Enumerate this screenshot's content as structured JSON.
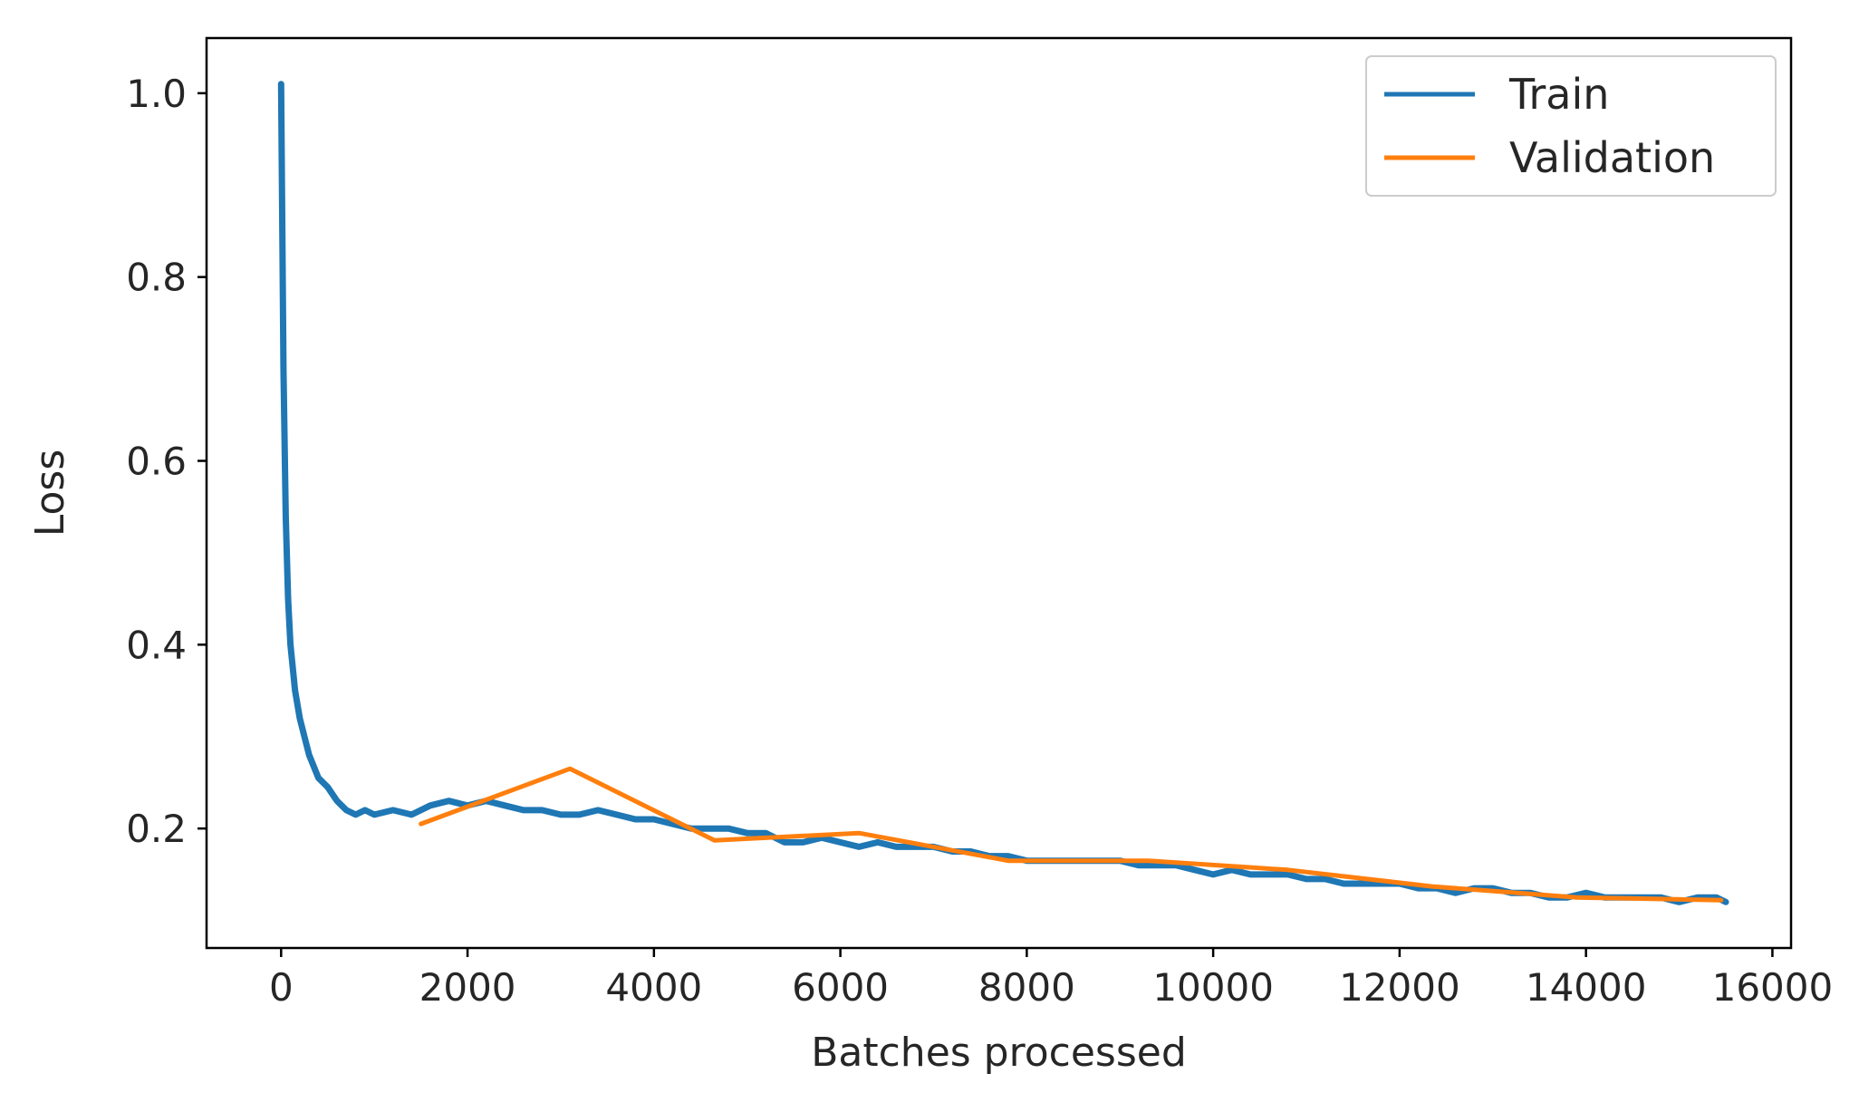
{
  "chart_data": {
    "type": "line",
    "xlabel": "Batches processed",
    "ylabel": "Loss",
    "xlim": [
      -800,
      16200
    ],
    "ylim": [
      0.07,
      1.06
    ],
    "xticks": [
      0,
      2000,
      4000,
      6000,
      8000,
      10000,
      12000,
      14000,
      16000
    ],
    "xtick_labels": [
      "0",
      "2000",
      "4000",
      "6000",
      "8000",
      "10000",
      "12000",
      "14000",
      "16000"
    ],
    "yticks": [
      0.2,
      0.4,
      0.6,
      0.8,
      1.0
    ],
    "ytick_labels": [
      "0.2",
      "0.4",
      "0.6",
      "0.8",
      "1.0"
    ],
    "grid": false,
    "legend_position": "top-right",
    "series": [
      {
        "name": "Train",
        "color": "#1f77b4",
        "x": [
          0,
          25,
          50,
          75,
          100,
          150,
          200,
          250,
          300,
          400,
          500,
          600,
          700,
          800,
          900,
          1000,
          1200,
          1400,
          1600,
          1800,
          2000,
          2200,
          2400,
          2600,
          2800,
          3000,
          3200,
          3400,
          3600,
          3800,
          4000,
          4200,
          4400,
          4600,
          4800,
          5000,
          5200,
          5400,
          5600,
          5800,
          6000,
          6200,
          6400,
          6600,
          6800,
          7000,
          7200,
          7400,
          7600,
          7800,
          8000,
          8200,
          8400,
          8600,
          8800,
          9000,
          9200,
          9400,
          9600,
          9800,
          10000,
          10200,
          10400,
          10600,
          10800,
          11000,
          11200,
          11400,
          11600,
          11800,
          12000,
          12200,
          12400,
          12600,
          12800,
          13000,
          13200,
          13400,
          13600,
          13800,
          14000,
          14200,
          14400,
          14600,
          14800,
          15000,
          15200,
          15400,
          15500
        ],
        "y": [
          1.01,
          0.7,
          0.54,
          0.45,
          0.4,
          0.35,
          0.32,
          0.3,
          0.28,
          0.255,
          0.245,
          0.23,
          0.22,
          0.215,
          0.22,
          0.215,
          0.22,
          0.215,
          0.225,
          0.23,
          0.225,
          0.23,
          0.225,
          0.22,
          0.22,
          0.215,
          0.215,
          0.22,
          0.215,
          0.21,
          0.21,
          0.205,
          0.2,
          0.2,
          0.2,
          0.195,
          0.195,
          0.185,
          0.185,
          0.19,
          0.185,
          0.18,
          0.185,
          0.18,
          0.18,
          0.18,
          0.175,
          0.175,
          0.17,
          0.17,
          0.165,
          0.165,
          0.165,
          0.165,
          0.165,
          0.165,
          0.16,
          0.16,
          0.16,
          0.155,
          0.15,
          0.155,
          0.15,
          0.15,
          0.15,
          0.145,
          0.145,
          0.14,
          0.14,
          0.14,
          0.14,
          0.135,
          0.135,
          0.13,
          0.135,
          0.135,
          0.13,
          0.13,
          0.125,
          0.125,
          0.13,
          0.125,
          0.125,
          0.125,
          0.125,
          0.12,
          0.125,
          0.125,
          0.12
        ]
      },
      {
        "name": "Validation",
        "color": "#ff7f0e",
        "x": [
          1500,
          3100,
          4650,
          6200,
          7800,
          9300,
          10800,
          12350,
          13900,
          15450
        ],
        "y": [
          0.205,
          0.265,
          0.187,
          0.195,
          0.165,
          0.165,
          0.155,
          0.137,
          0.125,
          0.122
        ]
      }
    ]
  }
}
